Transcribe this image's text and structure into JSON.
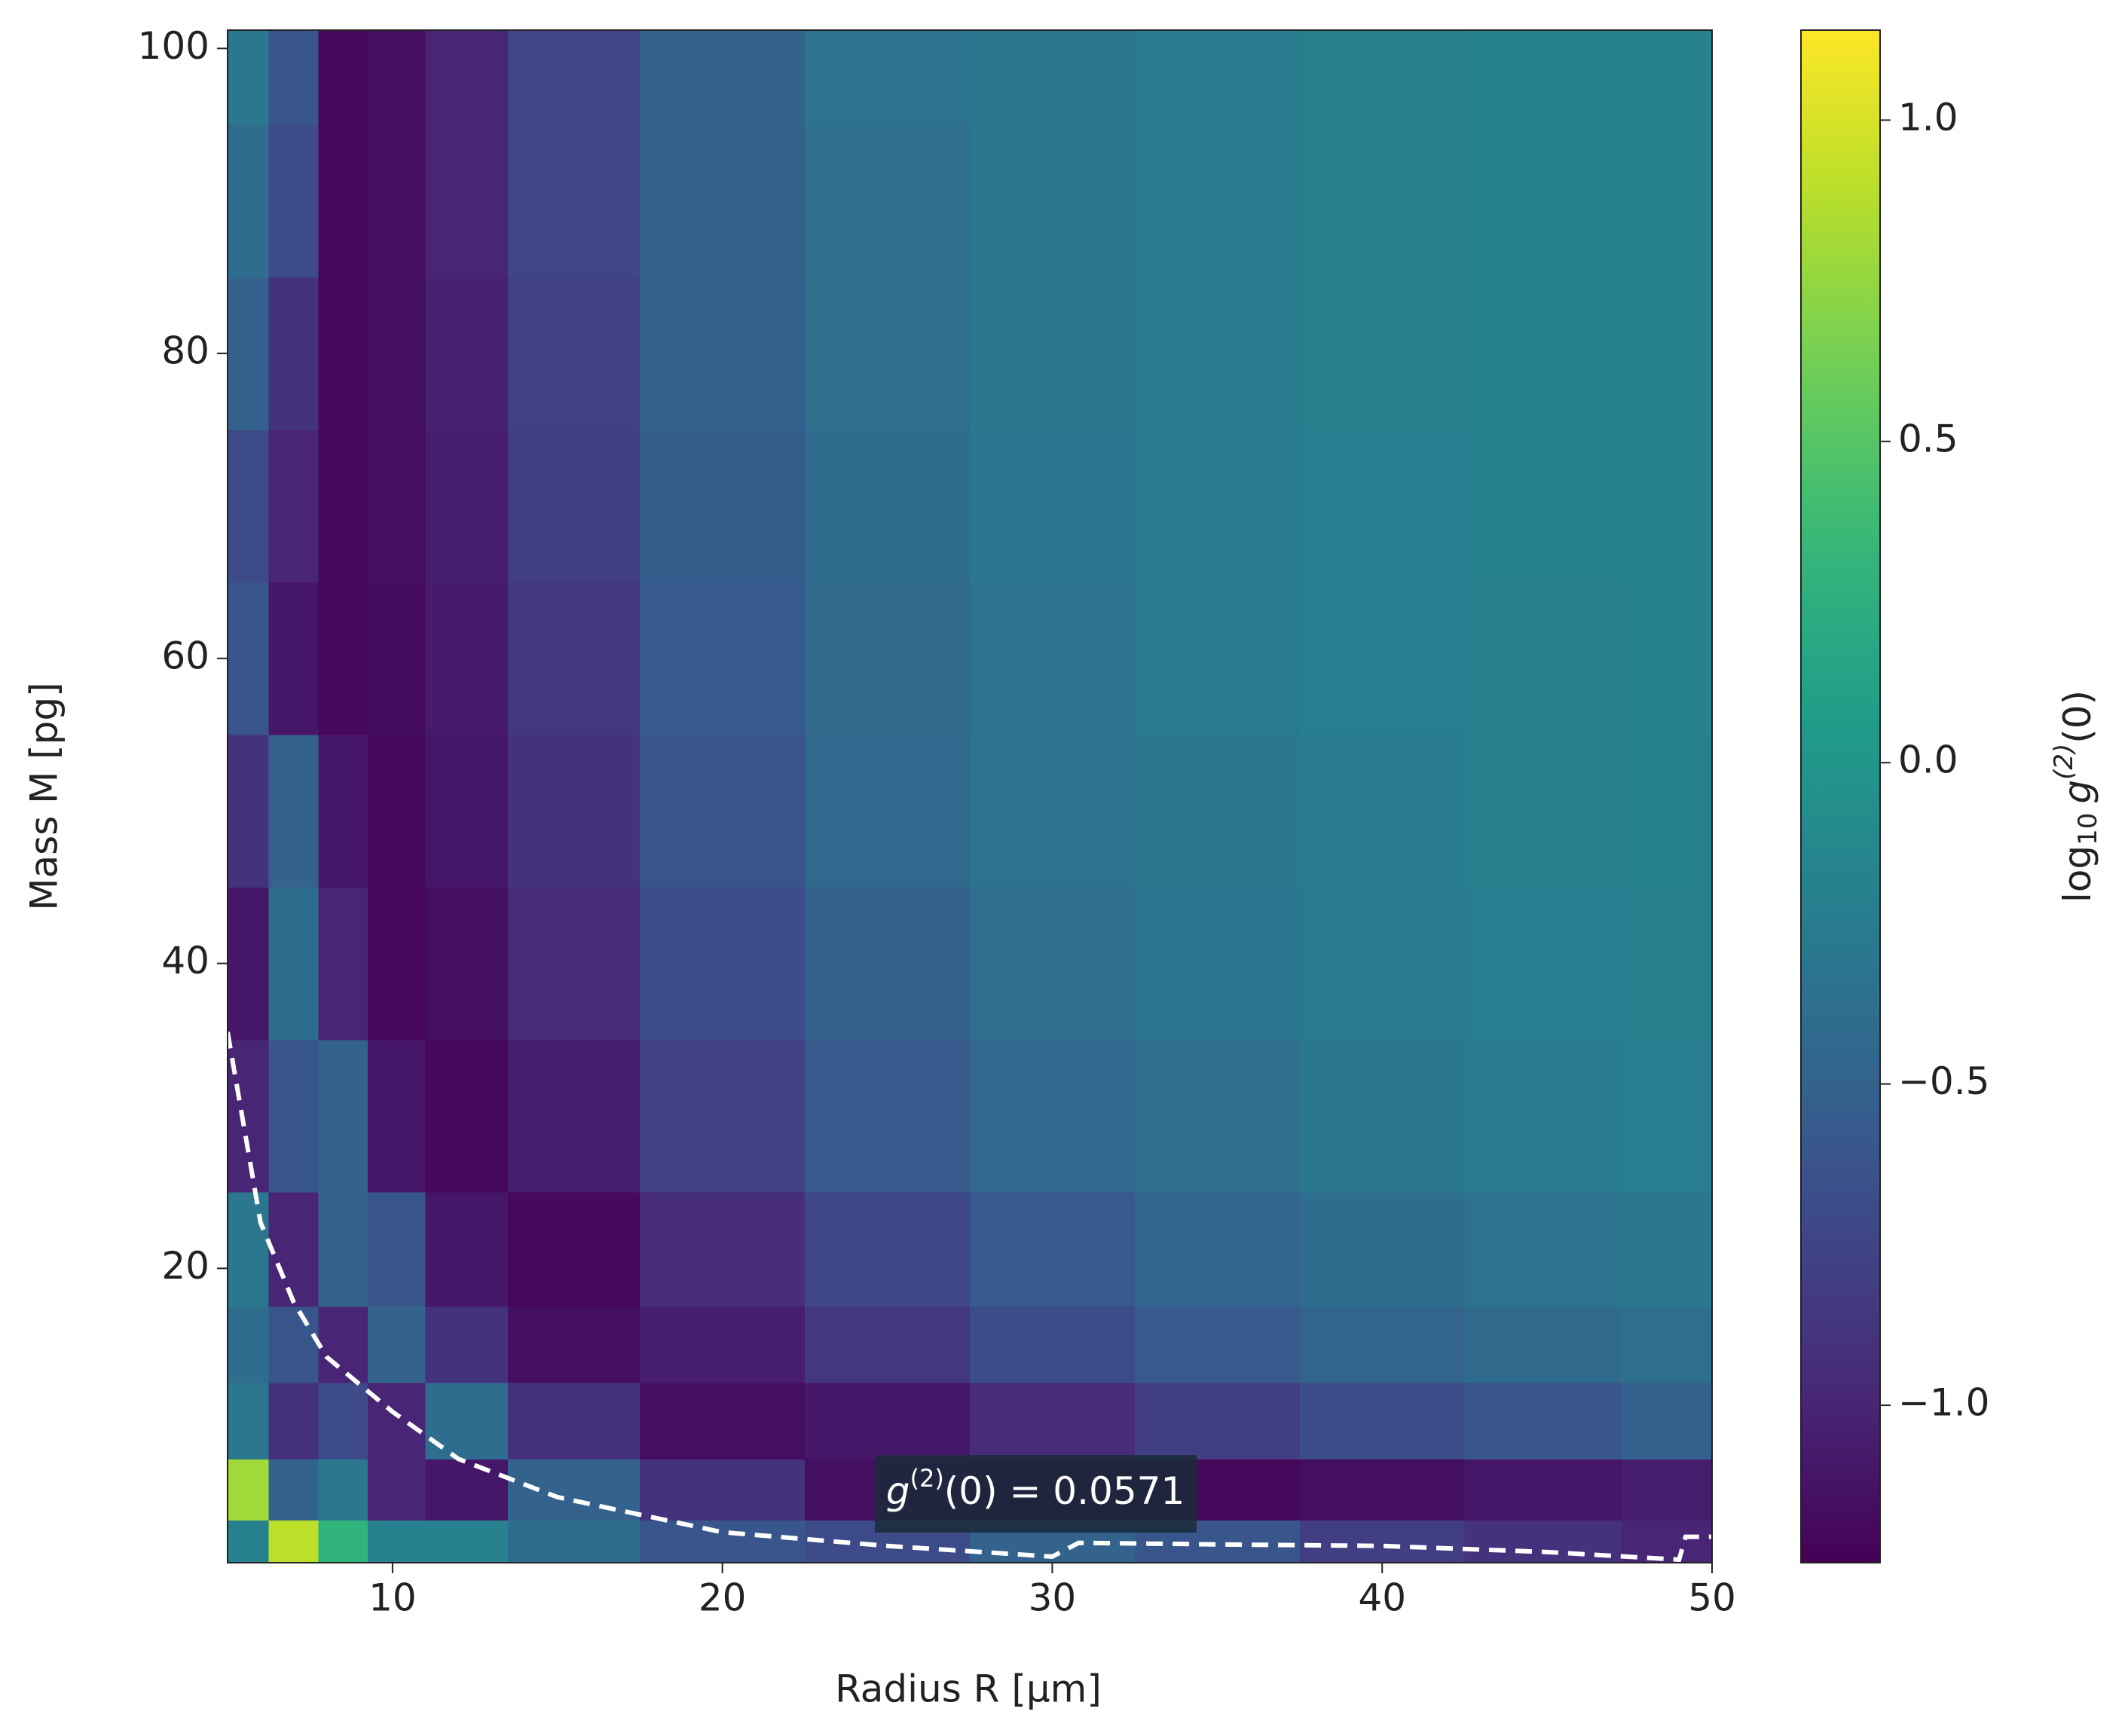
{
  "chart_data": {
    "type": "heatmap",
    "xlabel": "Radius R [μm]",
    "ylabel": "Mass M [pg]",
    "colorbar_label": [
      "log",
      "10",
      "g",
      "(2)",
      "(0)"
    ],
    "colormap": "viridis",
    "xlim": [
      5,
      50
    ],
    "xticks": [
      10,
      20,
      30,
      40,
      50
    ],
    "ylim": [
      0.7,
      101.2
    ],
    "yticks": [
      20,
      40,
      60,
      80,
      100
    ],
    "clim": [
      -1.245,
      1.14
    ],
    "cticks": [
      {
        "value": -1.0,
        "label": "−1.0"
      },
      {
        "value": -0.5,
        "label": "−0.5"
      },
      {
        "value": 0.0,
        "label": "0.0"
      },
      0.5,
      {
        "value": 1.0,
        "label": "1.0"
      }
    ],
    "x": [
      5.5,
      7,
      8.5,
      10,
      12,
      15,
      20,
      25,
      30,
      35,
      40,
      45,
      49.5
    ],
    "y": [
      2,
      5,
      10,
      15,
      20,
      30,
      40,
      50,
      60,
      70,
      80,
      90,
      100
    ],
    "z": [
      [
        -0.2,
        0.9,
        0.3,
        -0.2,
        -0.2,
        -0.4,
        -0.6,
        -0.7,
        -0.5,
        -0.6,
        -0.8,
        -0.9,
        -1.0
      ],
      [
        0.8,
        -0.5,
        -0.3,
        -1.0,
        -1.1,
        -0.5,
        -0.9,
        -1.15,
        -1.2,
        -1.2,
        -1.15,
        -1.1,
        -1.05
      ],
      [
        -0.3,
        -0.9,
        -0.7,
        -1.0,
        -0.4,
        -0.9,
        -1.15,
        -1.1,
        -0.95,
        -0.8,
        -0.68,
        -0.6,
        -0.52
      ],
      [
        -0.4,
        -0.6,
        -1.0,
        -0.5,
        -0.9,
        -1.15,
        -1.05,
        -0.85,
        -0.7,
        -0.58,
        -0.48,
        -0.42,
        -0.38
      ],
      [
        -0.3,
        -1.0,
        -0.5,
        -0.6,
        -1.1,
        -1.2,
        -0.95,
        -0.72,
        -0.58,
        -0.47,
        -0.4,
        -0.35,
        -0.3
      ],
      [
        -1.0,
        -0.6,
        -0.5,
        -1.1,
        -1.2,
        -1.05,
        -0.78,
        -0.58,
        -0.45,
        -0.37,
        -0.3,
        -0.27,
        -0.24
      ],
      [
        -1.1,
        -0.4,
        -1.0,
        -1.2,
        -1.15,
        -0.95,
        -0.68,
        -0.5,
        -0.38,
        -0.32,
        -0.27,
        -0.24,
        -0.22
      ],
      [
        -0.9,
        -0.5,
        -1.1,
        -1.2,
        -1.1,
        -0.9,
        -0.62,
        -0.45,
        -0.35,
        -0.3,
        -0.25,
        -0.22,
        -0.21
      ],
      [
        -0.6,
        -1.1,
        -1.2,
        -1.18,
        -1.07,
        -0.85,
        -0.58,
        -0.42,
        -0.33,
        -0.28,
        -0.24,
        -0.22,
        -0.2
      ],
      [
        -0.7,
        -1.0,
        -1.2,
        -1.15,
        -1.05,
        -0.8,
        -0.55,
        -0.4,
        -0.32,
        -0.27,
        -0.23,
        -0.21,
        -0.2
      ],
      [
        -0.5,
        -0.9,
        -1.2,
        -1.15,
        -1.02,
        -0.78,
        -0.52,
        -0.38,
        -0.3,
        -0.26,
        -0.22,
        -0.21,
        -0.2
      ],
      [
        -0.4,
        -0.7,
        -1.2,
        -1.15,
        -1.0,
        -0.75,
        -0.5,
        -0.37,
        -0.3,
        -0.25,
        -0.22,
        -0.2,
        -0.2
      ],
      [
        -0.3,
        -0.6,
        -1.2,
        -1.15,
        -1.0,
        -0.75,
        -0.5,
        -0.35,
        -0.3,
        -0.25,
        -0.22,
        -0.2,
        -0.2
      ]
    ],
    "contour": {
      "color": "#ffffff",
      "x": [
        5,
        6,
        7,
        8,
        10,
        12,
        15,
        20,
        25,
        30,
        30.8,
        35,
        40,
        45,
        49,
        49.2,
        50
      ],
      "y": [
        35.5,
        23,
        17.8,
        14.2,
        10.6,
        7.5,
        5.0,
        2.7,
        1.8,
        1.1,
        2.0,
        1.9,
        1.8,
        1.4,
        0.9,
        2.4,
        2.4
      ]
    },
    "annotation": [
      "g",
      "(2)",
      "(0) = 0.0571"
    ]
  }
}
